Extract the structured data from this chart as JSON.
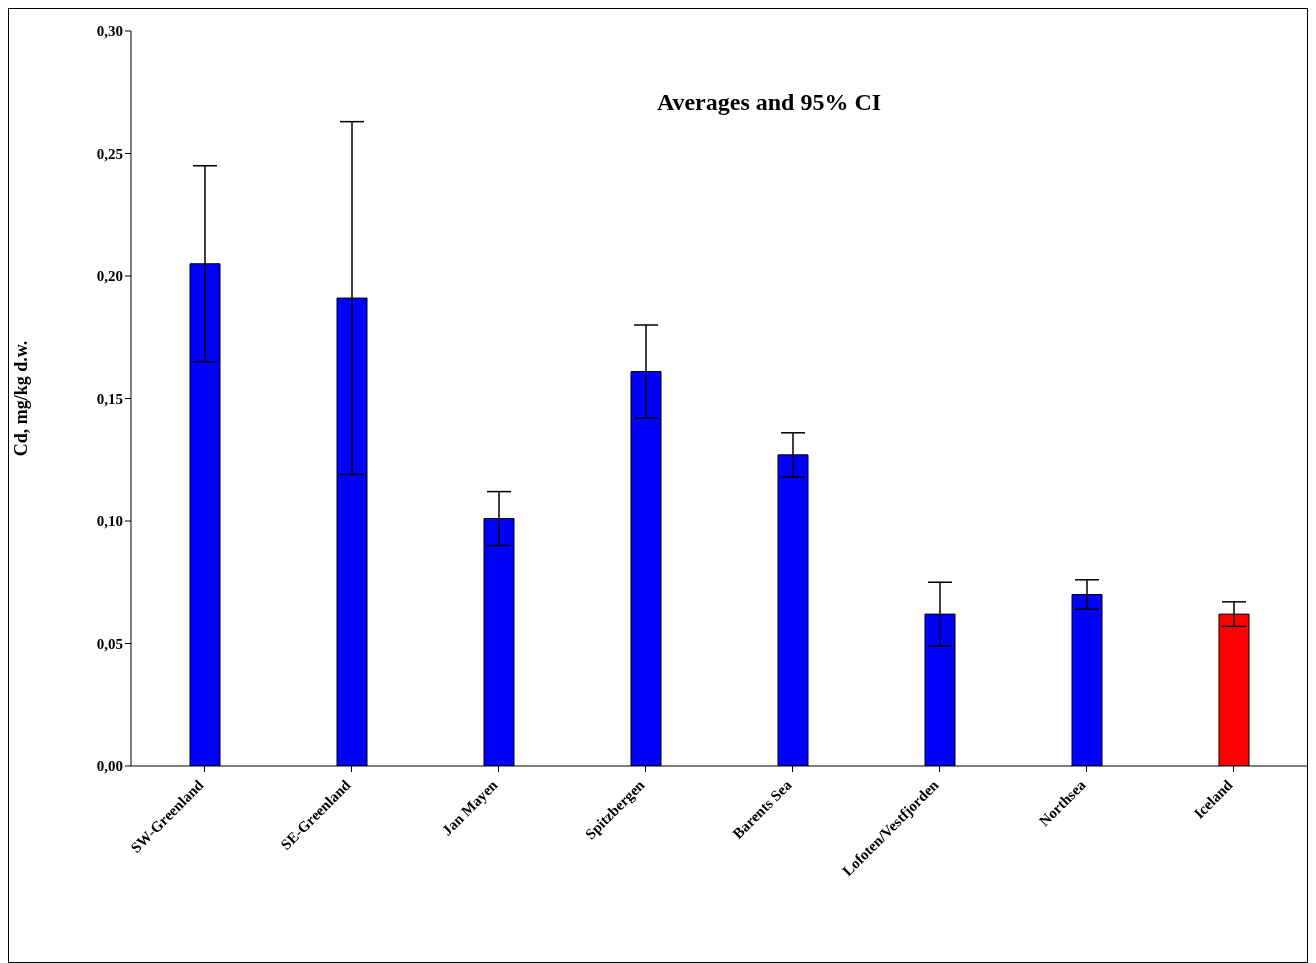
{
  "chart_data": {
    "type": "bar",
    "title": "Averages and 95% CI",
    "ylabel": "Cd, mg/kg d.w.",
    "categories": [
      "SW-Greenland",
      "SE-Greenland",
      "Jan Mayen",
      "Spitzbergen",
      "Barents Sea",
      "Lofoten/Vestfjorden",
      "Northsea",
      "Iceland"
    ],
    "values": [
      0.205,
      0.191,
      0.101,
      0.161,
      0.127,
      0.062,
      0.07,
      0.062
    ],
    "errors": [
      0.04,
      0.072,
      0.011,
      0.019,
      0.009,
      0.013,
      0.006,
      0.005
    ],
    "colors": [
      "#0000ff",
      "#0000ff",
      "#0000ff",
      "#0000ff",
      "#0000ff",
      "#0000ff",
      "#0000ff",
      "#ff0000"
    ],
    "ylim": [
      0,
      0.3
    ],
    "yticks": [
      {
        "value": 0,
        "label": "0,00"
      },
      {
        "value": 0.05,
        "label": "0,05"
      },
      {
        "value": 0.1,
        "label": "0,10"
      },
      {
        "value": 0.15,
        "label": "0,15"
      },
      {
        "value": 0.2,
        "label": "0,20"
      },
      {
        "value": 0.25,
        "label": "0,25"
      },
      {
        "value": 0.3,
        "label": "0,30"
      }
    ],
    "grid": false,
    "legend": false
  }
}
